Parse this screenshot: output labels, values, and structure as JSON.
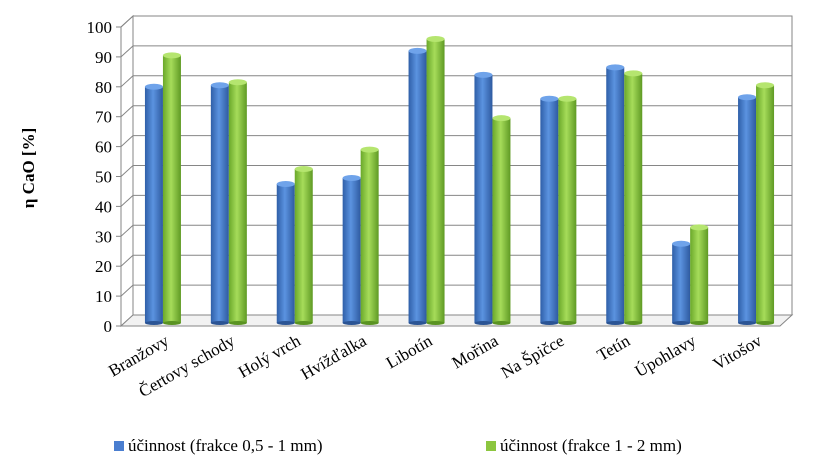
{
  "chart_data": {
    "type": "bar",
    "style": "3d-clustered-column",
    "title": "",
    "xlabel": "",
    "ylabel": "η CaO [%]",
    "ylim": [
      0,
      100
    ],
    "yticks": [
      "0",
      "10",
      "20",
      "30",
      "40",
      "50",
      "60",
      "70",
      "80",
      "90",
      "100"
    ],
    "grid": true,
    "legend_position": "bottom",
    "categories": [
      "Branžovy",
      "Čertovy schody",
      "Holý vrch",
      "Hvížďalka",
      "Libotín",
      "Mořina",
      "Na Špičce",
      "Tetín",
      "Úpohlavy",
      "Vitošov"
    ],
    "series": [
      {
        "name": "účinnost (frakce 0,5 - 1 mm)",
        "color": "#4a7ed0",
        "values": [
          79,
          79.5,
          46.5,
          48.5,
          91,
          83,
          75,
          85.5,
          26.5,
          75.5
        ]
      },
      {
        "name": "účinnost (frakce 1 - 2 mm)",
        "color": "#8cc63f",
        "values": [
          89.5,
          80.5,
          51.5,
          58,
          95,
          68.5,
          75,
          83.5,
          32,
          79.5
        ]
      }
    ]
  }
}
